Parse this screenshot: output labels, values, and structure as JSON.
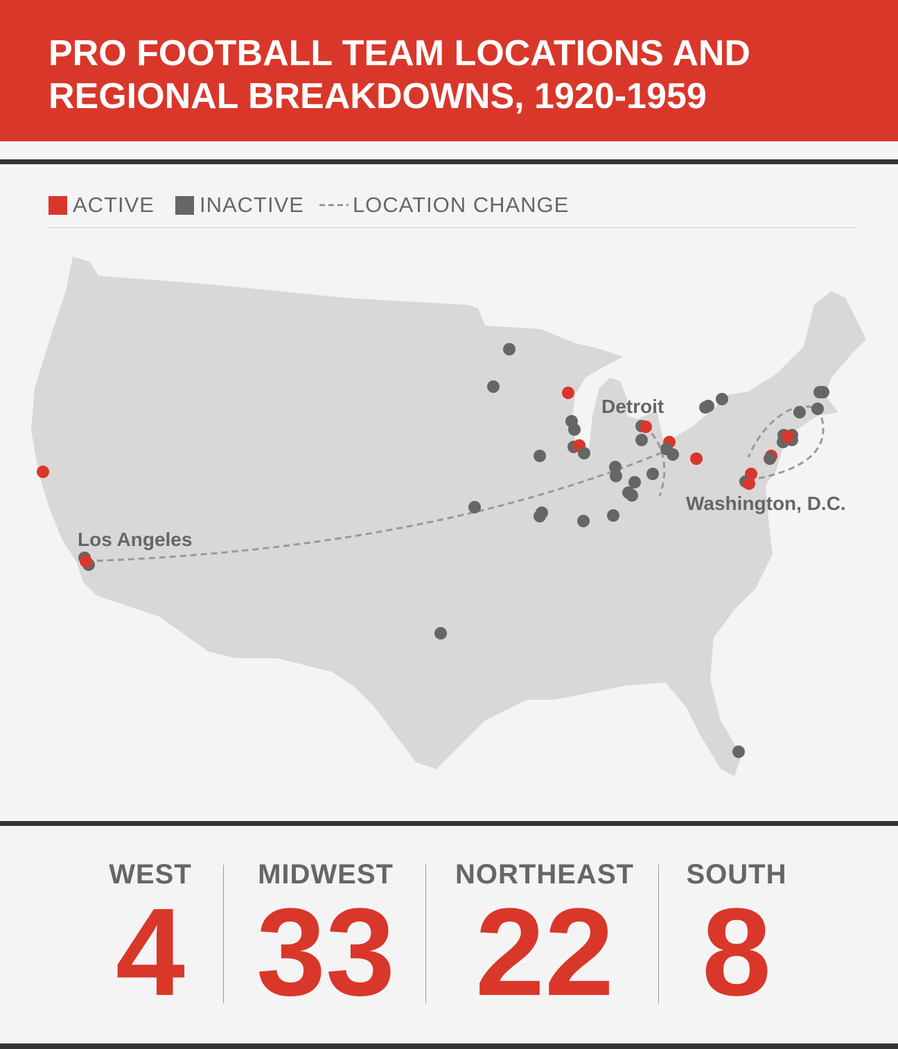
{
  "header": {
    "title": "PRO FOOTBALL TEAM LOCATIONS AND REGIONAL BREAKDOWNS, 1920-1959"
  },
  "legend": {
    "active": "ACTIVE",
    "inactive": "INACTIVE",
    "location_change": "LOCATION CHANGE"
  },
  "map": {
    "labels": [
      "Detroit",
      "Washington, D.C.",
      "Los Angeles"
    ]
  },
  "regions": [
    {
      "name": "WEST",
      "count": 4
    },
    {
      "name": "MIDWEST",
      "count": 33
    },
    {
      "name": "NORTHEAST",
      "count": 22
    },
    {
      "name": "SOUTH",
      "count": 8
    }
  ]
}
